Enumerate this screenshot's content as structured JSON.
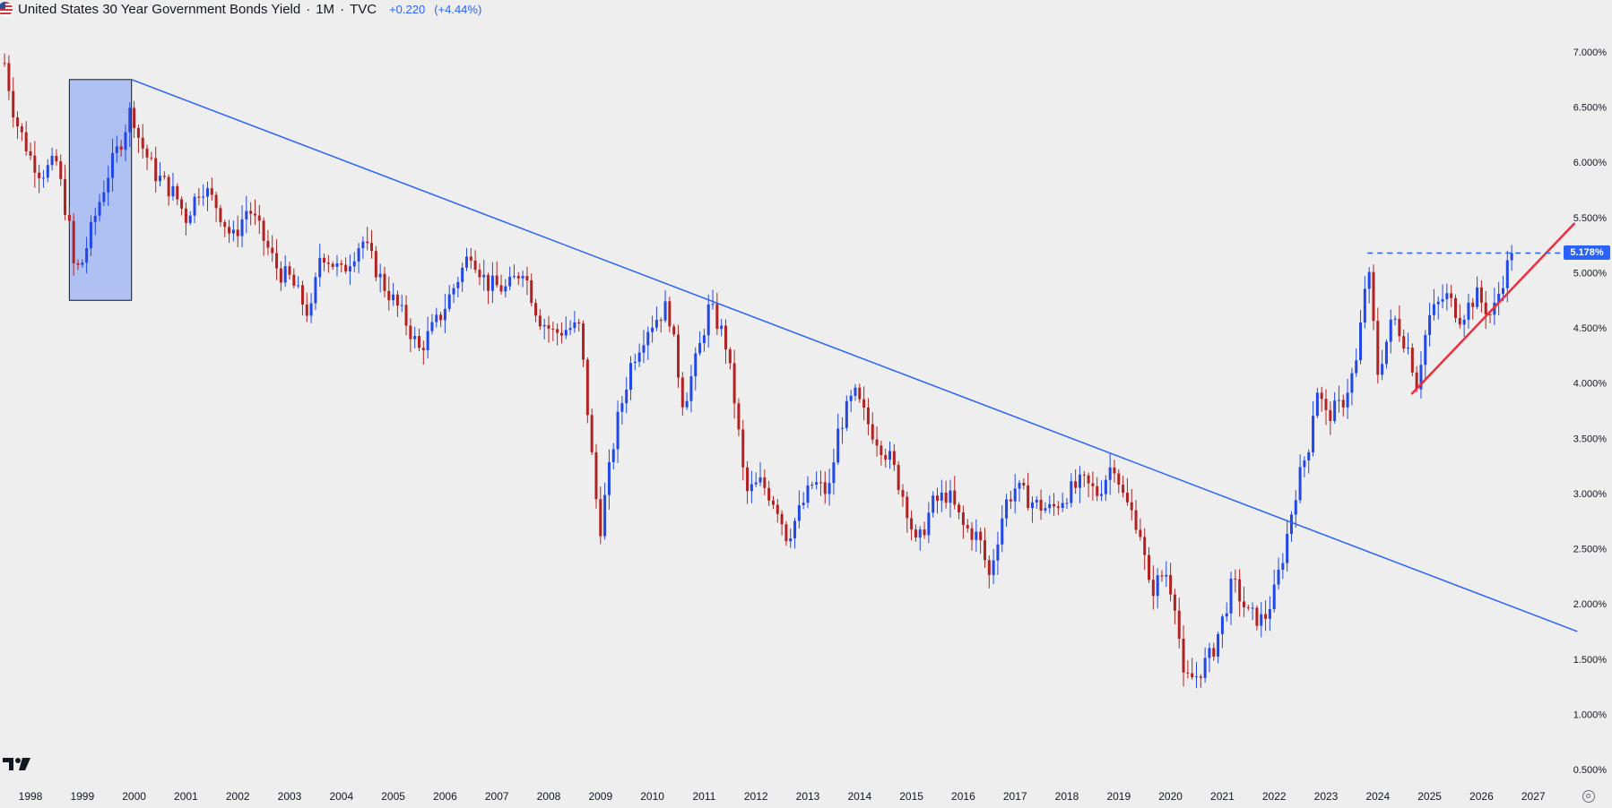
{
  "header": {
    "title": "United States 30 Year Government Bonds Yield",
    "interval": "1M",
    "source": "TVC",
    "change_abs": "+0.220",
    "change_pct": "(+4.44%)"
  },
  "price_label": "5.178%",
  "colors": {
    "up": "#2147e8",
    "down": "#b22222",
    "trendline": "#2962ff",
    "support": "#ee2d3e",
    "highlight_box": "#afc0f2",
    "background": "#eeeeee"
  },
  "icons": [
    "us-flag-icon",
    "tradingview-logo-icon",
    "settings-icon"
  ],
  "chart_data": {
    "type": "candlestick",
    "title": "United States 30 Year Government Bonds Yield",
    "x_ticks": [
      "1998",
      "1999",
      "2000",
      "2001",
      "2002",
      "2003",
      "2004",
      "2005",
      "2006",
      "2007",
      "2008",
      "2009",
      "2010",
      "2011",
      "2012",
      "2013",
      "2014",
      "2015",
      "2016",
      "2017",
      "2018",
      "2019",
      "2020",
      "2021",
      "2022",
      "2023",
      "2024",
      "2025",
      "2026",
      "2027"
    ],
    "y_ticks": [
      "7.000%",
      "6.500%",
      "6.000%",
      "5.500%",
      "5.000%",
      "4.500%",
      "4.000%",
      "3.500%",
      "3.000%",
      "2.500%",
      "2.000%",
      "1.500%",
      "1.000%",
      "0.500%"
    ],
    "xlim": [
      1997.4,
      2028.0
    ],
    "ylim": [
      0.5,
      7.0
    ],
    "last_value": 5.178,
    "grid": false,
    "anchors": [
      [
        1997.5,
        6.9
      ],
      [
        1997.7,
        6.4
      ],
      [
        1998.0,
        6.05
      ],
      [
        1998.2,
        5.9
      ],
      [
        1998.5,
        6.0
      ],
      [
        1998.75,
        5.4
      ],
      [
        1998.85,
        5.0
      ],
      [
        1999.0,
        5.1
      ],
      [
        1999.3,
        5.6
      ],
      [
        1999.5,
        5.9
      ],
      [
        1999.75,
        6.2
      ],
      [
        1999.95,
        6.5
      ],
      [
        2000.1,
        6.2
      ],
      [
        2000.4,
        5.9
      ],
      [
        2000.8,
        5.7
      ],
      [
        2001.0,
        5.5
      ],
      [
        2001.3,
        5.8
      ],
      [
        2001.6,
        5.6
      ],
      [
        2001.9,
        5.3
      ],
      [
        2002.2,
        5.6
      ],
      [
        2002.5,
        5.3
      ],
      [
        2002.8,
        5.0
      ],
      [
        2003.0,
        4.95
      ],
      [
        2003.4,
        4.6
      ],
      [
        2003.6,
        5.2
      ],
      [
        2004.0,
        5.0
      ],
      [
        2004.4,
        5.3
      ],
      [
        2004.8,
        4.9
      ],
      [
        2005.2,
        4.6
      ],
      [
        2005.5,
        4.3
      ],
      [
        2005.9,
        4.6
      ],
      [
        2006.3,
        5.0
      ],
      [
        2006.5,
        5.2
      ],
      [
        2006.8,
        4.9
      ],
      [
        2007.2,
        4.85
      ],
      [
        2007.5,
        5.05
      ],
      [
        2007.8,
        4.6
      ],
      [
        2008.1,
        4.45
      ],
      [
        2008.4,
        4.5
      ],
      [
        2008.6,
        4.5
      ],
      [
        2008.9,
        3.0
      ],
      [
        2009.0,
        2.7
      ],
      [
        2009.3,
        3.6
      ],
      [
        2009.6,
        4.2
      ],
      [
        2009.9,
        4.5
      ],
      [
        2010.3,
        4.7
      ],
      [
        2010.6,
        3.8
      ],
      [
        2010.9,
        4.3
      ],
      [
        2011.1,
        4.7
      ],
      [
        2011.4,
        4.4
      ],
      [
        2011.6,
        3.8
      ],
      [
        2011.8,
        3.0
      ],
      [
        2012.1,
        3.1
      ],
      [
        2012.4,
        2.9
      ],
      [
        2012.6,
        2.6
      ],
      [
        2012.9,
        2.9
      ],
      [
        2013.1,
        3.1
      ],
      [
        2013.4,
        3.0
      ],
      [
        2013.6,
        3.6
      ],
      [
        2013.9,
        3.9
      ],
      [
        2014.2,
        3.6
      ],
      [
        2014.6,
        3.3
      ],
      [
        2014.9,
        2.9
      ],
      [
        2015.1,
        2.5
      ],
      [
        2015.4,
        2.9
      ],
      [
        2015.7,
        3.0
      ],
      [
        2016.0,
        2.7
      ],
      [
        2016.3,
        2.6
      ],
      [
        2016.5,
        2.25
      ],
      [
        2016.8,
        2.9
      ],
      [
        2017.0,
        3.05
      ],
      [
        2017.4,
        2.9
      ],
      [
        2017.7,
        2.85
      ],
      [
        2018.0,
        3.0
      ],
      [
        2018.3,
        3.1
      ],
      [
        2018.6,
        3.0
      ],
      [
        2018.9,
        3.3
      ],
      [
        2019.1,
        2.95
      ],
      [
        2019.4,
        2.7
      ],
      [
        2019.6,
        2.1
      ],
      [
        2019.9,
        2.3
      ],
      [
        2020.1,
        2.0
      ],
      [
        2020.25,
        1.3
      ],
      [
        2020.5,
        1.35
      ],
      [
        2020.8,
        1.55
      ],
      [
        2021.0,
        1.85
      ],
      [
        2021.2,
        2.2
      ],
      [
        2021.5,
        1.9
      ],
      [
        2021.8,
        1.85
      ],
      [
        2022.0,
        2.1
      ],
      [
        2022.2,
        2.5
      ],
      [
        2022.4,
        3.0
      ],
      [
        2022.7,
        3.5
      ],
      [
        2022.8,
        4.0
      ],
      [
        2023.0,
        3.7
      ],
      [
        2023.3,
        3.8
      ],
      [
        2023.6,
        4.2
      ],
      [
        2023.8,
        5.1
      ],
      [
        2024.0,
        4.1
      ],
      [
        2024.3,
        4.6
      ],
      [
        2024.6,
        4.3
      ],
      [
        2024.75,
        4.0
      ],
      [
        2024.9,
        4.4
      ],
      [
        2025.0,
        4.6
      ],
      [
        2025.3,
        4.8
      ],
      [
        2025.6,
        4.6
      ],
      [
        2025.9,
        4.8
      ],
      [
        2026.2,
        4.6
      ],
      [
        2026.45,
        5.0
      ],
      [
        2026.6,
        5.178
      ]
    ],
    "annotations": [
      {
        "type": "box",
        "x": [
          1998.75,
          1999.95
        ],
        "y": [
          4.75,
          6.75
        ]
      },
      {
        "type": "trendline",
        "points": [
          [
            1999.95,
            6.75
          ],
          [
            2027.85,
            1.75
          ]
        ]
      },
      {
        "type": "support_line",
        "points": [
          [
            2024.65,
            3.9
          ],
          [
            2027.8,
            5.45
          ]
        ]
      },
      {
        "type": "resistance_dashed",
        "points": [
          [
            2023.8,
            5.178
          ],
          [
            2027.8,
            5.178
          ]
        ]
      }
    ]
  }
}
